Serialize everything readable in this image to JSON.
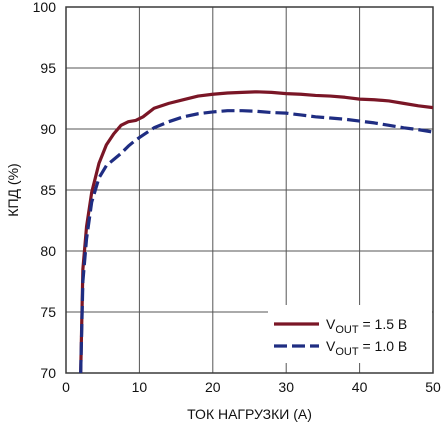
{
  "chart_data": {
    "type": "line",
    "xlabel": "ТОК НАГРУЗКИ (А)",
    "ylabel": "КПД (%)",
    "xlim": [
      0,
      50
    ],
    "ylim": [
      70,
      100
    ],
    "xticks": [
      0,
      10,
      20,
      30,
      40,
      50
    ],
    "yticks": [
      70,
      75,
      80,
      85,
      90,
      95,
      100
    ],
    "grid": true,
    "legend_position": "bottom-right",
    "series": [
      {
        "legend": {
          "prefix": "V",
          "sub": "OUT",
          "suffix": " = 1.5 В"
        },
        "color": "#7a1626",
        "dash": "solid",
        "x": [
          2.0,
          2.3,
          2.8,
          3.5,
          4.5,
          5.5,
          6.5,
          7.5,
          8.5,
          9.5,
          10.5,
          12,
          14,
          16,
          18,
          20,
          22,
          24,
          26,
          28,
          30,
          32,
          34,
          36,
          38,
          40,
          42,
          44,
          46,
          48,
          50
        ],
        "y": [
          70.0,
          78.5,
          82.0,
          84.8,
          87.2,
          88.7,
          89.6,
          90.3,
          90.6,
          90.7,
          91.0,
          91.7,
          92.1,
          92.4,
          92.7,
          92.85,
          92.95,
          93.0,
          93.05,
          93.0,
          92.9,
          92.85,
          92.75,
          92.7,
          92.6,
          92.45,
          92.4,
          92.3,
          92.1,
          91.9,
          91.75
        ]
      },
      {
        "legend": {
          "prefix": "V",
          "sub": "OUT",
          "suffix": " = 1.0 В"
        },
        "color": "#1f2d82",
        "dash": "dashed",
        "x": [
          2.0,
          2.3,
          2.8,
          3.5,
          4.5,
          5.5,
          6.5,
          7.5,
          8.5,
          9.5,
          10.5,
          12,
          14,
          16,
          18,
          20,
          22,
          24,
          26,
          28,
          30,
          32,
          34,
          36,
          38,
          40,
          42,
          44,
          46,
          48,
          50
        ],
        "y": [
          70.0,
          77.5,
          81.0,
          84.0,
          86.0,
          87.0,
          87.5,
          88.0,
          88.6,
          89.1,
          89.5,
          90.1,
          90.6,
          91.0,
          91.25,
          91.4,
          91.5,
          91.5,
          91.45,
          91.35,
          91.3,
          91.15,
          91.0,
          90.9,
          90.8,
          90.65,
          90.5,
          90.3,
          90.1,
          89.95,
          89.75
        ]
      }
    ]
  }
}
